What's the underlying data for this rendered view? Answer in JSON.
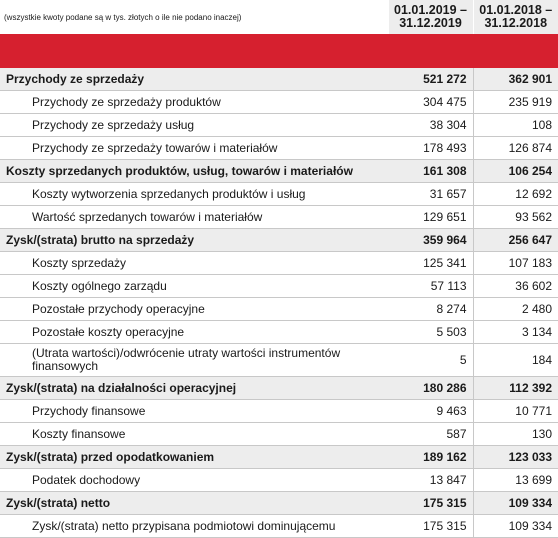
{
  "header": {
    "note": "(wszystkie kwoty podane są w tys. złotych o ile nie podano inaczej)",
    "col1": "01.01.2019 – 31.12.2019",
    "col2": "01.01.2018 – 31.12.2018"
  },
  "rows": [
    {
      "label": "Przychody ze sprzedaży",
      "v2019": "521 272",
      "v2018": "362 901",
      "bold": true
    },
    {
      "label": "Przychody ze sprzedaży produktów",
      "v2019": "304 475",
      "v2018": "235 919",
      "bold": false
    },
    {
      "label": "Przychody ze sprzedaży usług",
      "v2019": "38 304",
      "v2018": "108",
      "bold": false
    },
    {
      "label": "Przychody ze sprzedaży towarów i materiałów",
      "v2019": "178 493",
      "v2018": "126 874",
      "bold": false
    },
    {
      "label": "Koszty sprzedanych produktów, usług, towarów i materiałów",
      "v2019": "161 308",
      "v2018": "106 254",
      "bold": true
    },
    {
      "label": "Koszty wytworzenia sprzedanych produktów i usług",
      "v2019": "31 657",
      "v2018": "12 692",
      "bold": false
    },
    {
      "label": "Wartość sprzedanych towarów i materiałów",
      "v2019": "129 651",
      "v2018": "93 562",
      "bold": false
    },
    {
      "label": "Zysk/(strata) brutto na sprzedaży",
      "v2019": "359 964",
      "v2018": "256 647",
      "bold": true
    },
    {
      "label": "Koszty sprzedaży",
      "v2019": "125 341",
      "v2018": "107 183",
      "bold": false
    },
    {
      "label": "Koszty ogólnego zarządu",
      "v2019": "57 113",
      "v2018": "36 602",
      "bold": false
    },
    {
      "label": "Pozostałe przychody operacyjne",
      "v2019": "8 274",
      "v2018": "2 480",
      "bold": false
    },
    {
      "label": "Pozostałe koszty operacyjne",
      "v2019": "5 503",
      "v2018": "3 134",
      "bold": false
    },
    {
      "label": "(Utrata wartości)/odwrócenie utraty wartości instrumentów finansowych",
      "v2019": "5",
      "v2018": "184",
      "bold": false,
      "tall": true
    },
    {
      "label": "Zysk/(strata) na działalności operacyjnej",
      "v2019": "180 286",
      "v2018": "112 392",
      "bold": true
    },
    {
      "label": "Przychody finansowe",
      "v2019": "9 463",
      "v2018": "10 771",
      "bold": false
    },
    {
      "label": "Koszty finansowe",
      "v2019": "587",
      "v2018": "130",
      "bold": false
    },
    {
      "label": "Zysk/(strata) przed opodatkowaniem",
      "v2019": "189 162",
      "v2018": "123 033",
      "bold": true
    },
    {
      "label": "Podatek dochodowy",
      "v2019": "13 847",
      "v2018": "13 699",
      "bold": false
    },
    {
      "label": "Zysk/(strata) netto",
      "v2019": "175 315",
      "v2018": "109 334",
      "bold": true
    },
    {
      "label": "Zysk/(strata) netto przypisana podmiotowi dominującemu",
      "v2019": "175 315",
      "v2018": "109 334",
      "bold": false
    }
  ]
}
